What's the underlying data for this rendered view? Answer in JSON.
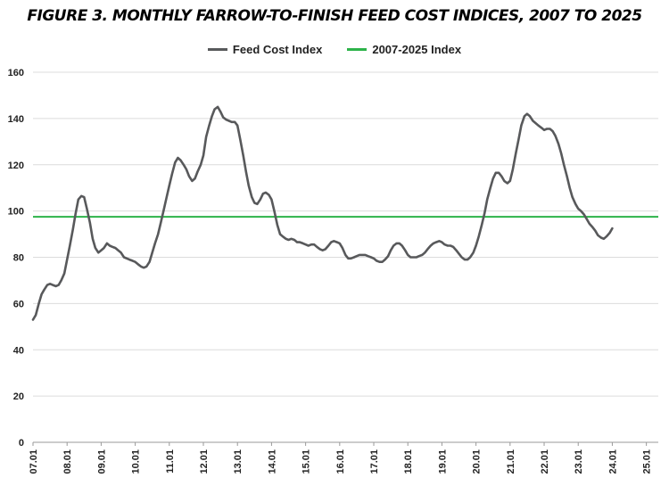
{
  "chart_data": {
    "type": "line",
    "title": "FIGURE 3.  MONTHLY FARROW-TO-FINISH FEED COST INDICES, 2007 TO 2025",
    "xlabel": "",
    "ylabel": "",
    "ylim": [
      0,
      160
    ],
    "y_ticks": [
      0,
      20,
      40,
      60,
      80,
      100,
      120,
      140,
      160
    ],
    "x_tick_labels": [
      "07.01",
      "08.01",
      "09.01",
      "10.01",
      "11.01",
      "12.01",
      "13.01",
      "14.01",
      "15.01",
      "16.01",
      "17.01",
      "18.01",
      "19.01",
      "20.01",
      "21.01",
      "22.01",
      "23.01",
      "24.01",
      "25.01"
    ],
    "grid": "horizontal",
    "legend_position": "top",
    "series": [
      {
        "name": "Feed Cost Index",
        "color": "#58595b",
        "points": [
          [
            2007.0,
            53
          ],
          [
            2007.08,
            55
          ],
          [
            2007.17,
            60
          ],
          [
            2007.25,
            64
          ],
          [
            2007.33,
            66
          ],
          [
            2007.42,
            68
          ],
          [
            2007.5,
            68.5
          ],
          [
            2007.58,
            68
          ],
          [
            2007.67,
            67.5
          ],
          [
            2007.75,
            68
          ],
          [
            2007.83,
            70
          ],
          [
            2007.92,
            73
          ],
          [
            2008.0,
            79
          ],
          [
            2008.08,
            85
          ],
          [
            2008.17,
            92
          ],
          [
            2008.25,
            99
          ],
          [
            2008.33,
            105
          ],
          [
            2008.42,
            106.5
          ],
          [
            2008.5,
            106
          ],
          [
            2008.58,
            101
          ],
          [
            2008.67,
            95
          ],
          [
            2008.75,
            88
          ],
          [
            2008.83,
            84
          ],
          [
            2008.92,
            82
          ],
          [
            2009.0,
            83
          ],
          [
            2009.08,
            84
          ],
          [
            2009.17,
            86
          ],
          [
            2009.25,
            85
          ],
          [
            2009.33,
            84.5
          ],
          [
            2009.42,
            84
          ],
          [
            2009.5,
            83
          ],
          [
            2009.58,
            82
          ],
          [
            2009.67,
            80
          ],
          [
            2009.75,
            79.5
          ],
          [
            2009.83,
            79
          ],
          [
            2009.92,
            78.5
          ],
          [
            2010.0,
            78
          ],
          [
            2010.08,
            77
          ],
          [
            2010.17,
            76
          ],
          [
            2010.25,
            75.5
          ],
          [
            2010.33,
            76
          ],
          [
            2010.42,
            78
          ],
          [
            2010.5,
            82
          ],
          [
            2010.58,
            86
          ],
          [
            2010.67,
            90
          ],
          [
            2010.75,
            95
          ],
          [
            2010.83,
            100
          ],
          [
            2010.92,
            106
          ],
          [
            2011.0,
            111
          ],
          [
            2011.08,
            116
          ],
          [
            2011.17,
            121
          ],
          [
            2011.25,
            123
          ],
          [
            2011.33,
            122
          ],
          [
            2011.42,
            120
          ],
          [
            2011.5,
            118
          ],
          [
            2011.58,
            115
          ],
          [
            2011.67,
            113
          ],
          [
            2011.75,
            114
          ],
          [
            2011.83,
            117
          ],
          [
            2011.92,
            120
          ],
          [
            2012.0,
            124
          ],
          [
            2012.08,
            132
          ],
          [
            2012.17,
            137
          ],
          [
            2012.25,
            141
          ],
          [
            2012.33,
            144
          ],
          [
            2012.42,
            145
          ],
          [
            2012.5,
            143
          ],
          [
            2012.58,
            140.5
          ],
          [
            2012.67,
            139.5
          ],
          [
            2012.75,
            139
          ],
          [
            2012.83,
            138.5
          ],
          [
            2012.92,
            138.5
          ],
          [
            2013.0,
            137
          ],
          [
            2013.08,
            131
          ],
          [
            2013.17,
            124
          ],
          [
            2013.25,
            117
          ],
          [
            2013.33,
            111
          ],
          [
            2013.42,
            106
          ],
          [
            2013.5,
            103.5
          ],
          [
            2013.58,
            103
          ],
          [
            2013.67,
            105
          ],
          [
            2013.75,
            107.5
          ],
          [
            2013.83,
            108
          ],
          [
            2013.92,
            107
          ],
          [
            2014.0,
            105
          ],
          [
            2014.08,
            100
          ],
          [
            2014.17,
            94
          ],
          [
            2014.25,
            90
          ],
          [
            2014.33,
            89
          ],
          [
            2014.42,
            88
          ],
          [
            2014.5,
            87.5
          ],
          [
            2014.58,
            88
          ],
          [
            2014.67,
            87.5
          ],
          [
            2014.75,
            86.5
          ],
          [
            2014.83,
            86.5
          ],
          [
            2014.92,
            86
          ],
          [
            2015.0,
            85.5
          ],
          [
            2015.08,
            85
          ],
          [
            2015.17,
            85.5
          ],
          [
            2015.25,
            85.5
          ],
          [
            2015.33,
            84.5
          ],
          [
            2015.42,
            83.5
          ],
          [
            2015.5,
            83
          ],
          [
            2015.58,
            83.5
          ],
          [
            2015.67,
            85
          ],
          [
            2015.75,
            86.5
          ],
          [
            2015.83,
            87
          ],
          [
            2015.92,
            86.5
          ],
          [
            2016.0,
            86
          ],
          [
            2016.08,
            84
          ],
          [
            2016.17,
            81
          ],
          [
            2016.25,
            79.5
          ],
          [
            2016.33,
            79.5
          ],
          [
            2016.42,
            80
          ],
          [
            2016.5,
            80.5
          ],
          [
            2016.58,
            81
          ],
          [
            2016.67,
            81
          ],
          [
            2016.75,
            81
          ],
          [
            2016.83,
            80.5
          ],
          [
            2016.92,
            80
          ],
          [
            2017.0,
            79.5
          ],
          [
            2017.08,
            78.5
          ],
          [
            2017.17,
            78
          ],
          [
            2017.25,
            78
          ],
          [
            2017.33,
            79
          ],
          [
            2017.42,
            80.5
          ],
          [
            2017.5,
            83
          ],
          [
            2017.58,
            85
          ],
          [
            2017.67,
            86
          ],
          [
            2017.75,
            86
          ],
          [
            2017.83,
            85
          ],
          [
            2017.92,
            83
          ],
          [
            2018.0,
            81
          ],
          [
            2018.08,
            80
          ],
          [
            2018.17,
            80
          ],
          [
            2018.25,
            80
          ],
          [
            2018.33,
            80.5
          ],
          [
            2018.42,
            81
          ],
          [
            2018.5,
            82
          ],
          [
            2018.58,
            83.5
          ],
          [
            2018.67,
            85
          ],
          [
            2018.75,
            86
          ],
          [
            2018.83,
            86.5
          ],
          [
            2018.92,
            87
          ],
          [
            2019.0,
            86.5
          ],
          [
            2019.08,
            85.5
          ],
          [
            2019.17,
            85
          ],
          [
            2019.25,
            85
          ],
          [
            2019.33,
            84.5
          ],
          [
            2019.42,
            83
          ],
          [
            2019.5,
            81.5
          ],
          [
            2019.58,
            80
          ],
          [
            2019.67,
            79
          ],
          [
            2019.75,
            79
          ],
          [
            2019.83,
            80
          ],
          [
            2019.92,
            82
          ],
          [
            2020.0,
            85
          ],
          [
            2020.08,
            89
          ],
          [
            2020.17,
            94
          ],
          [
            2020.25,
            99
          ],
          [
            2020.33,
            105
          ],
          [
            2020.42,
            110
          ],
          [
            2020.5,
            114
          ],
          [
            2020.58,
            116.5
          ],
          [
            2020.67,
            116.5
          ],
          [
            2020.75,
            115
          ],
          [
            2020.83,
            113
          ],
          [
            2020.92,
            112
          ],
          [
            2021.0,
            113
          ],
          [
            2021.08,
            118
          ],
          [
            2021.17,
            125
          ],
          [
            2021.25,
            131
          ],
          [
            2021.33,
            137
          ],
          [
            2021.42,
            141
          ],
          [
            2021.5,
            142
          ],
          [
            2021.58,
            141
          ],
          [
            2021.67,
            139
          ],
          [
            2021.75,
            138
          ],
          [
            2021.83,
            137
          ],
          [
            2021.92,
            136
          ],
          [
            2022.0,
            135
          ],
          [
            2022.08,
            135.5
          ],
          [
            2022.17,
            135.5
          ],
          [
            2022.25,
            134.5
          ],
          [
            2022.33,
            132.5
          ],
          [
            2022.42,
            129
          ],
          [
            2022.5,
            125
          ],
          [
            2022.58,
            120
          ],
          [
            2022.67,
            115
          ],
          [
            2022.75,
            110
          ],
          [
            2022.83,
            106
          ],
          [
            2022.92,
            103
          ],
          [
            2023.0,
            101
          ],
          [
            2023.08,
            100
          ],
          [
            2023.17,
            98.5
          ],
          [
            2023.25,
            96.5
          ],
          [
            2023.33,
            94.5
          ],
          [
            2023.42,
            93
          ],
          [
            2023.5,
            91.5
          ],
          [
            2023.58,
            89.5
          ],
          [
            2023.67,
            88.5
          ],
          [
            2023.75,
            88
          ],
          [
            2023.83,
            89
          ],
          [
            2023.92,
            90.5
          ],
          [
            2024.0,
            92.5
          ]
        ]
      },
      {
        "name": "2007-2025 Index",
        "color": "#2db34a",
        "constant": 97.5
      }
    ]
  }
}
